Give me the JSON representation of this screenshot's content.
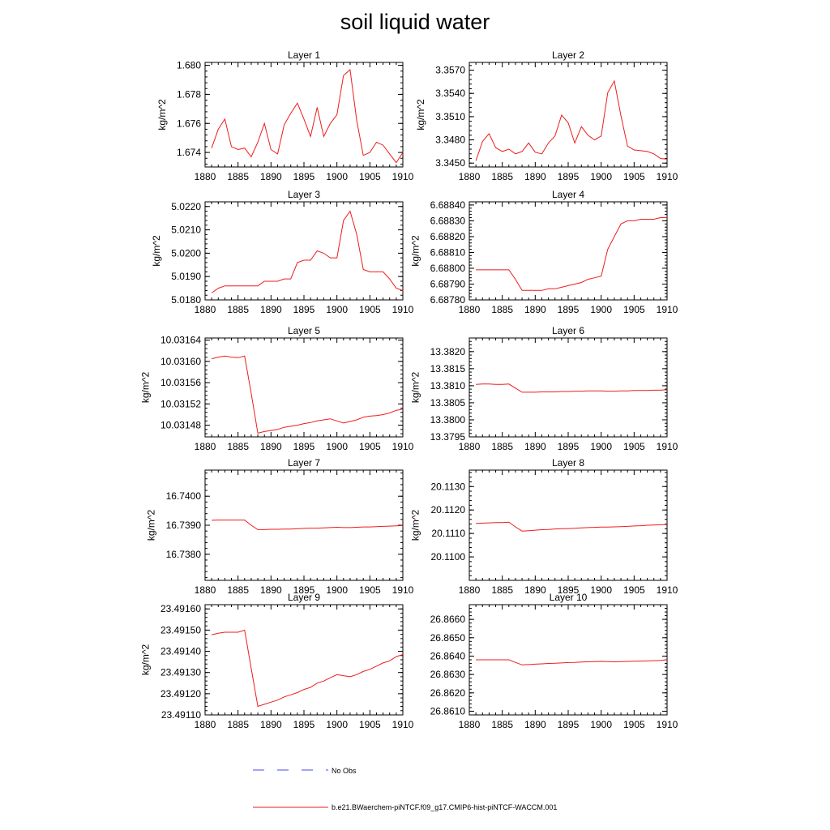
{
  "page_title": "soil liquid water",
  "legend": {
    "obs_label": "No Obs",
    "model_label": "b.e21.BWaerchem-piNTCF.f09_g17.CMIP6-hist-piNTCF-WACCM.001",
    "obs_color": "#4a4aee",
    "model_color": "#ee1c1c"
  },
  "chart_data": [
    {
      "type": "line",
      "title": "Layer 1",
      "xlabel": "",
      "ylabel": "kg/m^2",
      "xlim": [
        1880,
        1910
      ],
      "ylim": [
        1.673,
        1.6802
      ],
      "xticks": [
        1880,
        1885,
        1890,
        1895,
        1900,
        1905,
        1910
      ],
      "yticks": [
        "1.674",
        "1.676",
        "1.678",
        "1.680"
      ],
      "series": [
        {
          "x": [
            1881,
            1882,
            1883,
            1884,
            1885,
            1886,
            1887,
            1888,
            1889,
            1890,
            1891,
            1892,
            1893,
            1894,
            1895,
            1896,
            1897,
            1898,
            1899,
            1900,
            1901,
            1902,
            1903,
            1904,
            1905,
            1906,
            1907,
            1908,
            1909,
            1910
          ],
          "y": [
            1.6743,
            1.6756,
            1.6763,
            1.6744,
            1.6742,
            1.6743,
            1.6737,
            1.6747,
            1.676,
            1.6742,
            1.6739,
            1.6759,
            1.6767,
            1.6774,
            1.6763,
            1.6751,
            1.6771,
            1.6751,
            1.676,
            1.6766,
            1.6793,
            1.6797,
            1.6762,
            1.6738,
            1.674,
            1.6747,
            1.6745,
            1.6739,
            1.6733,
            1.674
          ]
        }
      ]
    },
    {
      "type": "line",
      "title": "Layer 2",
      "xlabel": "",
      "ylabel": "kg/m^2",
      "xlim": [
        1880,
        1910
      ],
      "ylim": [
        3.3445,
        3.358
      ],
      "xticks": [
        1880,
        1885,
        1890,
        1895,
        1900,
        1905,
        1910
      ],
      "yticks": [
        "3.3450",
        "3.3480",
        "3.3510",
        "3.3540",
        "3.3570"
      ],
      "series": [
        {
          "x": [
            1881,
            1882,
            1883,
            1884,
            1885,
            1886,
            1887,
            1888,
            1889,
            1890,
            1891,
            1892,
            1893,
            1894,
            1895,
            1896,
            1897,
            1898,
            1899,
            1900,
            1901,
            1902,
            1903,
            1904,
            1905,
            1906,
            1907,
            1908,
            1909,
            1910
          ],
          "y": [
            3.3453,
            3.3478,
            3.3488,
            3.347,
            3.3465,
            3.3468,
            3.3462,
            3.3465,
            3.3476,
            3.3464,
            3.3462,
            3.3476,
            3.3485,
            3.3512,
            3.3502,
            3.3476,
            3.3497,
            3.3486,
            3.348,
            3.3485,
            3.3541,
            3.3556,
            3.3511,
            3.3472,
            3.3467,
            3.3466,
            3.3465,
            3.3462,
            3.3456,
            3.3455
          ]
        }
      ]
    },
    {
      "type": "line",
      "title": "Layer 3",
      "xlabel": "",
      "ylabel": "kg/m^2",
      "xlim": [
        1880,
        1910
      ],
      "ylim": [
        5.018,
        5.0222
      ],
      "xticks": [
        1880,
        1885,
        1890,
        1895,
        1900,
        1905,
        1910
      ],
      "yticks": [
        "5.0180",
        "5.0190",
        "5.0200",
        "5.0210",
        "5.0220"
      ],
      "series": [
        {
          "x": [
            1881,
            1882,
            1883,
            1884,
            1885,
            1886,
            1887,
            1888,
            1889,
            1890,
            1891,
            1892,
            1893,
            1894,
            1895,
            1896,
            1897,
            1898,
            1899,
            1900,
            1901,
            1902,
            1903,
            1904,
            1905,
            1906,
            1907,
            1908,
            1909,
            1910
          ],
          "y": [
            5.0183,
            5.0185,
            5.0186,
            5.0186,
            5.0186,
            5.0186,
            5.0186,
            5.0186,
            5.0188,
            5.0188,
            5.0188,
            5.0189,
            5.0189,
            5.0196,
            5.0197,
            5.0197,
            5.0201,
            5.02,
            5.0198,
            5.0198,
            5.0214,
            5.0218,
            5.0208,
            5.0193,
            5.0192,
            5.0192,
            5.0192,
            5.0189,
            5.0185,
            5.0184
          ]
        }
      ]
    },
    {
      "type": "line",
      "title": "Layer 4",
      "xlabel": "",
      "ylabel": "kg/m^2",
      "xlim": [
        1880,
        1910
      ],
      "ylim": [
        6.6878,
        6.68842
      ],
      "xticks": [
        1880,
        1885,
        1890,
        1895,
        1900,
        1905,
        1910
      ],
      "yticks": [
        "6.68780",
        "6.68790",
        "6.68800",
        "6.68810",
        "6.68820",
        "6.68830",
        "6.68840"
      ],
      "series": [
        {
          "x": [
            1881,
            1882,
            1883,
            1884,
            1885,
            1886,
            1887,
            1888,
            1889,
            1890,
            1891,
            1892,
            1893,
            1894,
            1895,
            1896,
            1897,
            1898,
            1899,
            1900,
            1901,
            1902,
            1903,
            1904,
            1905,
            1906,
            1907,
            1908,
            1909,
            1910
          ],
          "y": [
            6.68799,
            6.68799,
            6.68799,
            6.68799,
            6.68799,
            6.68799,
            6.68793,
            6.68786,
            6.68786,
            6.68786,
            6.68786,
            6.68787,
            6.68787,
            6.68788,
            6.68789,
            6.6879,
            6.68791,
            6.68793,
            6.68794,
            6.68795,
            6.68812,
            6.6882,
            6.68828,
            6.6883,
            6.6883,
            6.68831,
            6.68831,
            6.68831,
            6.68832,
            6.68832
          ]
        }
      ]
    },
    {
      "type": "line",
      "title": "Layer 5",
      "xlabel": "",
      "ylabel": "kg/m^2",
      "xlim": [
        1880,
        1910
      ],
      "ylim": [
        10.031458,
        10.031644
      ],
      "xticks": [
        1880,
        1885,
        1890,
        1895,
        1900,
        1905,
        1910
      ],
      "yticks": [
        "10.03148",
        "10.03152",
        "10.03156",
        "10.03160",
        "10.03164"
      ],
      "series": [
        {
          "x": [
            1881,
            1882,
            1883,
            1884,
            1885,
            1886,
            1887,
            1888,
            1889,
            1890,
            1891,
            1892,
            1893,
            1894,
            1895,
            1896,
            1897,
            1898,
            1899,
            1900,
            1901,
            1902,
            1903,
            1904,
            1905,
            1906,
            1907,
            1908,
            1909,
            1910
          ],
          "y": [
            10.031605,
            10.031608,
            10.03161,
            10.031608,
            10.031607,
            10.03161,
            10.03154,
            10.031465,
            10.031468,
            10.03147,
            10.031472,
            10.031476,
            10.031478,
            10.03148,
            10.031483,
            10.031485,
            10.031488,
            10.03149,
            10.031492,
            10.031488,
            10.031484,
            10.031487,
            10.03149,
            10.031495,
            10.031497,
            10.031498,
            10.0315,
            10.031503,
            10.031508,
            10.03151
          ]
        }
      ]
    },
    {
      "type": "line",
      "title": "Layer 6",
      "xlabel": "",
      "ylabel": "kg/m^2",
      "xlim": [
        1880,
        1910
      ],
      "ylim": [
        13.3795,
        13.3824
      ],
      "xticks": [
        1880,
        1885,
        1890,
        1895,
        1900,
        1905,
        1910
      ],
      "yticks": [
        "13.3795",
        "13.3800",
        "13.3805",
        "13.3810",
        "13.3815",
        "13.3820"
      ],
      "series": [
        {
          "x": [
            1881,
            1882,
            1883,
            1884,
            1885,
            1886,
            1887,
            1888,
            1889,
            1890,
            1891,
            1892,
            1893,
            1894,
            1895,
            1896,
            1897,
            1898,
            1899,
            1900,
            1901,
            1902,
            1903,
            1904,
            1905,
            1906,
            1907,
            1908,
            1909,
            1910
          ],
          "y": [
            13.38104,
            13.38105,
            13.38105,
            13.38104,
            13.38104,
            13.38105,
            13.38093,
            13.38081,
            13.38081,
            13.38081,
            13.38082,
            13.38082,
            13.38082,
            13.38083,
            13.38083,
            13.38084,
            13.38084,
            13.38085,
            13.38085,
            13.38085,
            13.38084,
            13.38084,
            13.38085,
            13.38085,
            13.38086,
            13.38086,
            13.38086,
            13.38087,
            13.38087,
            13.38088
          ]
        }
      ]
    },
    {
      "type": "line",
      "title": "Layer 7",
      "xlabel": "",
      "ylabel": "kg/m^2",
      "xlim": [
        1880,
        1910
      ],
      "ylim": [
        16.7371,
        16.7409
      ],
      "xticks": [
        1880,
        1885,
        1890,
        1895,
        1900,
        1905,
        1910
      ],
      "yticks": [
        "16.7380",
        "16.7390",
        "16.7400"
      ],
      "series": [
        {
          "x": [
            1881,
            1882,
            1883,
            1884,
            1885,
            1886,
            1887,
            1888,
            1889,
            1890,
            1891,
            1892,
            1893,
            1894,
            1895,
            1896,
            1897,
            1898,
            1899,
            1900,
            1901,
            1902,
            1903,
            1904,
            1905,
            1906,
            1907,
            1908,
            1909,
            1910
          ],
          "y": [
            16.73917,
            16.73918,
            16.73918,
            16.73918,
            16.73918,
            16.73918,
            16.739,
            16.73885,
            16.73885,
            16.73886,
            16.73886,
            16.73887,
            16.73887,
            16.73888,
            16.73889,
            16.7389,
            16.7389,
            16.73891,
            16.73892,
            16.73893,
            16.73892,
            16.73892,
            16.73893,
            16.73894,
            16.73894,
            16.73895,
            16.73896,
            16.73897,
            16.73898,
            16.73899
          ]
        }
      ]
    },
    {
      "type": "line",
      "title": "Layer 8",
      "xlabel": "",
      "ylabel": "kg/m^2",
      "xlim": [
        1880,
        1910
      ],
      "ylim": [
        20.109,
        20.1137
      ],
      "xticks": [
        1880,
        1885,
        1890,
        1895,
        1900,
        1905,
        1910
      ],
      "yticks": [
        "20.1100",
        "20.1110",
        "20.1120",
        "20.1130"
      ],
      "series": [
        {
          "x": [
            1881,
            1882,
            1883,
            1884,
            1885,
            1886,
            1887,
            1888,
            1889,
            1890,
            1891,
            1892,
            1893,
            1894,
            1895,
            1896,
            1897,
            1898,
            1899,
            1900,
            1901,
            1902,
            1903,
            1904,
            1905,
            1906,
            1907,
            1908,
            1909,
            1910
          ],
          "y": [
            20.11143,
            20.11144,
            20.11145,
            20.11146,
            20.11146,
            20.11148,
            20.11128,
            20.1111,
            20.11112,
            20.11114,
            20.11116,
            20.11117,
            20.11119,
            20.1112,
            20.11121,
            20.11122,
            20.11124,
            20.11125,
            20.11126,
            20.11127,
            20.11127,
            20.11128,
            20.11129,
            20.1113,
            20.11132,
            20.11133,
            20.11135,
            20.11136,
            20.11137,
            20.11138
          ]
        }
      ]
    },
    {
      "type": "line",
      "title": "Layer 9",
      "xlabel": "",
      "ylabel": "kg/m^2",
      "xlim": [
        1880,
        1910
      ],
      "ylim": [
        23.4911,
        23.49162
      ],
      "xticks": [
        1880,
        1885,
        1890,
        1895,
        1900,
        1905,
        1910
      ],
      "yticks": [
        "23.49110",
        "23.49120",
        "23.49130",
        "23.49140",
        "23.49150",
        "23.49160"
      ],
      "series": [
        {
          "x": [
            1881,
            1882,
            1883,
            1884,
            1885,
            1886,
            1887,
            1888,
            1889,
            1890,
            1891,
            1892,
            1893,
            1894,
            1895,
            1896,
            1897,
            1898,
            1899,
            1900,
            1901,
            1902,
            1903,
            1904,
            1905,
            1906,
            1907,
            1908,
            1909,
            1910
          ],
          "y": [
            23.491478,
            23.491485,
            23.49149,
            23.49149,
            23.49149,
            23.4915,
            23.49132,
            23.49114,
            23.49115,
            23.49116,
            23.49117,
            23.491185,
            23.491195,
            23.491205,
            23.49122,
            23.49123,
            23.49125,
            23.49126,
            23.491275,
            23.49129,
            23.491285,
            23.49128,
            23.49129,
            23.491305,
            23.491315,
            23.49133,
            23.491345,
            23.491355,
            23.491375,
            23.491385
          ]
        }
      ]
    },
    {
      "type": "line",
      "title": "Layer 10",
      "xlabel": "",
      "ylabel": "",
      "xlim": [
        1880,
        1910
      ],
      "ylim": [
        26.8608,
        26.8668
      ],
      "xticks": [
        1880,
        1885,
        1890,
        1895,
        1900,
        1905,
        1910
      ],
      "yticks": [
        "26.8610",
        "26.8620",
        "26.8630",
        "26.8640",
        "26.8650",
        "26.8660"
      ],
      "series": [
        {
          "x": [
            1881,
            1882,
            1883,
            1884,
            1885,
            1886,
            1887,
            1888,
            1889,
            1890,
            1891,
            1892,
            1893,
            1894,
            1895,
            1896,
            1897,
            1898,
            1899,
            1900,
            1901,
            1902,
            1903,
            1904,
            1905,
            1906,
            1907,
            1908,
            1909,
            1910
          ],
          "y": [
            26.8638,
            26.8638,
            26.8638,
            26.8638,
            26.8638,
            26.8638,
            26.86366,
            26.86352,
            26.86354,
            26.86356,
            26.86358,
            26.8636,
            26.86361,
            26.86363,
            26.86365,
            26.86366,
            26.86368,
            26.86369,
            26.8637,
            26.86371,
            26.8637,
            26.86369,
            26.8637,
            26.86371,
            26.86372,
            26.86373,
            26.86374,
            26.86375,
            26.86377,
            26.8638
          ]
        }
      ]
    }
  ]
}
